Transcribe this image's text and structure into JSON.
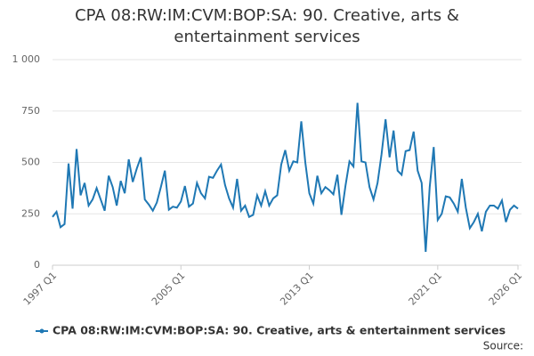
{
  "chart_data": {
    "type": "line",
    "title": "CPA 08:RW:IM:CVM:BOP:SA: 90. Creative, arts & entertainment services",
    "source": "Source:",
    "categories": [
      "1997 Q1",
      null,
      null,
      null,
      null,
      null,
      null,
      null,
      null,
      null,
      null,
      null,
      null,
      null,
      null,
      null,
      null,
      null,
      null,
      null,
      null,
      null,
      null,
      null,
      null,
      null,
      null,
      null,
      null,
      null,
      null,
      null,
      "2005 Q1",
      null,
      null,
      null,
      null,
      null,
      null,
      null,
      null,
      null,
      null,
      null,
      null,
      null,
      null,
      null,
      null,
      null,
      null,
      null,
      null,
      null,
      null,
      null,
      null,
      null,
      null,
      null,
      null,
      null,
      null,
      null,
      "2013 Q1",
      null,
      null,
      null,
      null,
      null,
      null,
      null,
      null,
      null,
      null,
      null,
      null,
      null,
      null,
      null,
      null,
      null,
      null,
      null,
      null,
      null,
      null,
      null,
      null,
      null,
      null,
      null,
      null,
      null,
      null,
      null,
      "2021 Q1",
      null,
      null,
      null,
      null,
      null,
      null,
      null,
      null,
      null,
      null,
      null,
      null,
      null,
      null,
      null,
      null,
      null,
      null,
      null,
      "2026 Q1"
    ],
    "series": [
      {
        "name": "CPA 08:RW:IM:CVM:BOP:SA: 90. Creative, arts & entertainment services",
        "color": "#1f78b4",
        "values": [
          235,
          260,
          185,
          200,
          495,
          275,
          565,
          340,
          400,
          290,
          320,
          375,
          320,
          265,
          435,
          380,
          290,
          410,
          350,
          515,
          405,
          470,
          525,
          320,
          295,
          265,
          305,
          380,
          460,
          270,
          285,
          280,
          310,
          385,
          285,
          300,
          400,
          350,
          325,
          430,
          425,
          460,
          490,
          390,
          325,
          280,
          420,
          265,
          290,
          235,
          245,
          340,
          290,
          360,
          290,
          325,
          340,
          490,
          560,
          460,
          505,
          500,
          700,
          500,
          350,
          300,
          435,
          350,
          380,
          365,
          345,
          440,
          245,
          385,
          505,
          480,
          790,
          505,
          500,
          380,
          320,
          400,
          540,
          710,
          525,
          655,
          460,
          440,
          555,
          560,
          650,
          460,
          400,
          65,
          380,
          575,
          220,
          250,
          335,
          330,
          300,
          260,
          420,
          280,
          180,
          210,
          250,
          165,
          260,
          290,
          290,
          275,
          315,
          210,
          270,
          290,
          275
        ]
      }
    ],
    "ylim": [
      0,
      1000
    ],
    "yticks": [
      0,
      250,
      500,
      750,
      {
        "value": 1000,
        "label": "1 000"
      }
    ],
    "grid": true
  }
}
